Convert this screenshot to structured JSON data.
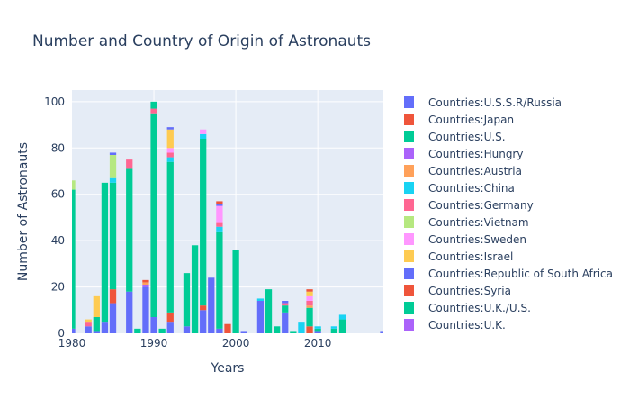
{
  "chart_data": {
    "type": "bar",
    "stacked": true,
    "title": "Number and Country of Origin of Astronauts",
    "xlabel": "Years",
    "ylabel": "Number of Astronauts",
    "xlim": [
      1980,
      2018
    ],
    "ylim": [
      0,
      105
    ],
    "x_ticks": [
      1980,
      1990,
      2000,
      2010
    ],
    "y_ticks": [
      0,
      20,
      40,
      60,
      80,
      100
    ],
    "grid": true,
    "legend_position": "right",
    "x": [
      1980,
      1981,
      1982,
      1983,
      1984,
      1985,
      1986,
      1987,
      1988,
      1989,
      1990,
      1991,
      1992,
      1993,
      1994,
      1995,
      1996,
      1997,
      1998,
      1999,
      2000,
      2001,
      2002,
      2003,
      2004,
      2005,
      2006,
      2007,
      2008,
      2009,
      2010,
      2011,
      2012,
      2013,
      2014,
      2015,
      2016,
      2017,
      2018
    ],
    "series": [
      {
        "name": "Countries:U.S.S.R/Russia",
        "color": "#636efa",
        "values": [
          2,
          0,
          3,
          1,
          5,
          13,
          0,
          18,
          0,
          20,
          7,
          0,
          5,
          0,
          3,
          0,
          10,
          24,
          2,
          0,
          0,
          1,
          0,
          14,
          0,
          0,
          9,
          0,
          0,
          0,
          1,
          0,
          0,
          0,
          0,
          0,
          0,
          0,
          1
        ]
      },
      {
        "name": "Countries:Japan",
        "color": "#ef553b",
        "values": [
          0,
          0,
          0,
          0,
          0,
          6,
          0,
          0,
          0,
          0,
          0,
          0,
          4,
          0,
          0,
          0,
          2,
          0,
          0,
          4,
          0,
          0,
          0,
          0,
          0,
          0,
          0,
          0,
          0,
          3,
          0,
          0,
          0,
          0,
          0,
          0,
          0,
          0,
          0
        ]
      },
      {
        "name": "Countries:U.S.",
        "color": "#00cc96",
        "values": [
          60,
          0,
          0,
          6,
          60,
          46,
          0,
          53,
          2,
          0,
          88,
          2,
          65,
          0,
          23,
          38,
          72,
          0,
          42,
          0,
          36,
          0,
          0,
          0,
          19,
          3,
          3,
          1,
          0,
          8,
          1,
          0,
          2,
          6,
          0,
          0,
          0,
          0,
          0
        ]
      },
      {
        "name": "Countries:Hungry",
        "color": "#ab63fa",
        "values": [
          0,
          0,
          0,
          0,
          0,
          0,
          0,
          0,
          0,
          1,
          0,
          0,
          0,
          0,
          0,
          0,
          0,
          0,
          0,
          0,
          0,
          0,
          0,
          0,
          0,
          0,
          0,
          0,
          0,
          0,
          0,
          0,
          0,
          0,
          0,
          0,
          0,
          0,
          0
        ]
      },
      {
        "name": "Countries:Austria",
        "color": "#ffa15a",
        "values": [
          0,
          0,
          0,
          0,
          0,
          0,
          0,
          0,
          0,
          1,
          0,
          0,
          0,
          0,
          0,
          0,
          0,
          0,
          0,
          0,
          0,
          0,
          0,
          0,
          0,
          0,
          0,
          0,
          0,
          1,
          0,
          0,
          0,
          0,
          0,
          0,
          0,
          0,
          0
        ]
      },
      {
        "name": "Countries:China",
        "color": "#19d3f3",
        "values": [
          0,
          0,
          0,
          0,
          0,
          2,
          0,
          0,
          0,
          0,
          0,
          0,
          2,
          0,
          0,
          0,
          2,
          0,
          2,
          0,
          0,
          0,
          0,
          1,
          0,
          0,
          0,
          0,
          5,
          0,
          1,
          0,
          1,
          2,
          0,
          0,
          0,
          0,
          0
        ]
      },
      {
        "name": "Countries:Germany",
        "color": "#ff6692",
        "values": [
          0,
          0,
          2,
          0,
          0,
          0,
          0,
          4,
          0,
          0,
          2,
          0,
          2,
          0,
          0,
          0,
          0,
          0,
          2,
          0,
          0,
          0,
          0,
          0,
          0,
          0,
          1,
          0,
          0,
          2,
          0,
          0,
          0,
          0,
          0,
          0,
          0,
          0,
          0
        ]
      },
      {
        "name": "Countries:Vietnam",
        "color": "#b6e880",
        "values": [
          4,
          0,
          0,
          0,
          0,
          10,
          0,
          0,
          0,
          0,
          0,
          0,
          0,
          0,
          0,
          0,
          0,
          0,
          0,
          0,
          0,
          0,
          0,
          0,
          0,
          0,
          0,
          0,
          0,
          0,
          0,
          0,
          0,
          0,
          0,
          0,
          0,
          0,
          0
        ]
      },
      {
        "name": "Countries:Sweden",
        "color": "#ff97ff",
        "values": [
          0,
          0,
          0,
          0,
          0,
          0,
          0,
          0,
          0,
          0,
          0,
          0,
          2,
          0,
          0,
          0,
          2,
          0,
          7,
          0,
          0,
          0,
          0,
          0,
          0,
          0,
          0,
          0,
          0,
          2,
          0,
          0,
          0,
          0,
          0,
          0,
          0,
          0,
          0
        ]
      },
      {
        "name": "Countries:Israel",
        "color": "#fecb52",
        "values": [
          0,
          0,
          1,
          9,
          0,
          0,
          0,
          0,
          0,
          0,
          0,
          0,
          8,
          0,
          0,
          0,
          0,
          0,
          0,
          0,
          0,
          0,
          0,
          0,
          0,
          0,
          0,
          0,
          0,
          2,
          0,
          0,
          0,
          0,
          0,
          0,
          0,
          0,
          0
        ]
      },
      {
        "name": "Countries:Republic of South Africa",
        "color": "#636efa",
        "values": [
          0,
          0,
          0,
          0,
          0,
          1,
          0,
          0,
          0,
          0,
          0,
          0,
          1,
          0,
          0,
          0,
          0,
          0,
          1,
          0,
          0,
          0,
          0,
          0,
          0,
          0,
          1,
          0,
          0,
          0,
          0,
          0,
          0,
          0,
          0,
          0,
          0,
          0,
          0
        ]
      },
      {
        "name": "Countries:Syria",
        "color": "#ef553b",
        "values": [
          0,
          0,
          0,
          0,
          0,
          0,
          0,
          0,
          0,
          1,
          0,
          0,
          0,
          0,
          0,
          0,
          0,
          0,
          1,
          0,
          0,
          0,
          0,
          0,
          0,
          0,
          0,
          0,
          0,
          1,
          0,
          0,
          0,
          0,
          0,
          0,
          0,
          0,
          0
        ]
      },
      {
        "name": "Countries:U.K./U.S.",
        "color": "#00cc96",
        "values": [
          0,
          0,
          0,
          0,
          0,
          0,
          0,
          0,
          0,
          0,
          3,
          0,
          0,
          0,
          0,
          0,
          0,
          0,
          0,
          0,
          0,
          0,
          0,
          0,
          0,
          0,
          0,
          0,
          0,
          0,
          0,
          0,
          0,
          0,
          0,
          0,
          0,
          0,
          0
        ]
      },
      {
        "name": "Countries:U.K.",
        "color": "#ab63fa",
        "values": [
          0,
          0,
          0,
          0,
          0,
          0,
          0,
          0,
          0,
          0,
          0,
          0,
          0,
          0,
          0,
          0,
          0,
          0,
          0,
          0,
          0,
          0,
          0,
          0,
          0,
          0,
          0,
          0,
          0,
          0,
          0,
          0,
          0,
          0,
          0,
          0,
          0,
          0,
          0
        ]
      }
    ]
  }
}
